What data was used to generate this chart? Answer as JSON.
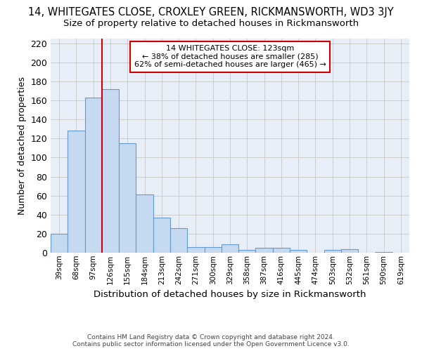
{
  "title_line1": "14, WHITEGATES CLOSE, CROXLEY GREEN, RICKMANSWORTH, WD3 3JY",
  "title_line2": "Size of property relative to detached houses in Rickmansworth",
  "xlabel": "Distribution of detached houses by size in Rickmansworth",
  "ylabel": "Number of detached properties",
  "categories": [
    "39sqm",
    "68sqm",
    "97sqm",
    "126sqm",
    "155sqm",
    "184sqm",
    "213sqm",
    "242sqm",
    "271sqm",
    "300sqm",
    "329sqm",
    "358sqm",
    "387sqm",
    "416sqm",
    "445sqm",
    "474sqm",
    "503sqm",
    "532sqm",
    "561sqm",
    "590sqm",
    "619sqm"
  ],
  "values": [
    20,
    128,
    163,
    172,
    115,
    61,
    37,
    26,
    6,
    6,
    9,
    3,
    5,
    5,
    3,
    0,
    3,
    4,
    0,
    1
  ],
  "bar_color": "#c5d9f0",
  "bar_edge_color": "#6699cc",
  "annotation_text_line1": "14 WHITEGATES CLOSE: 123sqm",
  "annotation_text_line2": "← 38% of detached houses are smaller (285)",
  "annotation_text_line3": "62% of semi-detached houses are larger (465) →",
  "annotation_box_color": "#ffffff",
  "annotation_box_edge_color": "#cc0000",
  "vline_color": "#cc0000",
  "ylim": [
    0,
    225
  ],
  "yticks": [
    0,
    20,
    40,
    60,
    80,
    100,
    120,
    140,
    160,
    180,
    200,
    220
  ],
  "grid_color": "#cccccc",
  "background_color": "#e8eef8",
  "footer_line1": "Contains HM Land Registry data © Crown copyright and database right 2024.",
  "footer_line2": "Contains public sector information licensed under the Open Government Licence v3.0."
}
